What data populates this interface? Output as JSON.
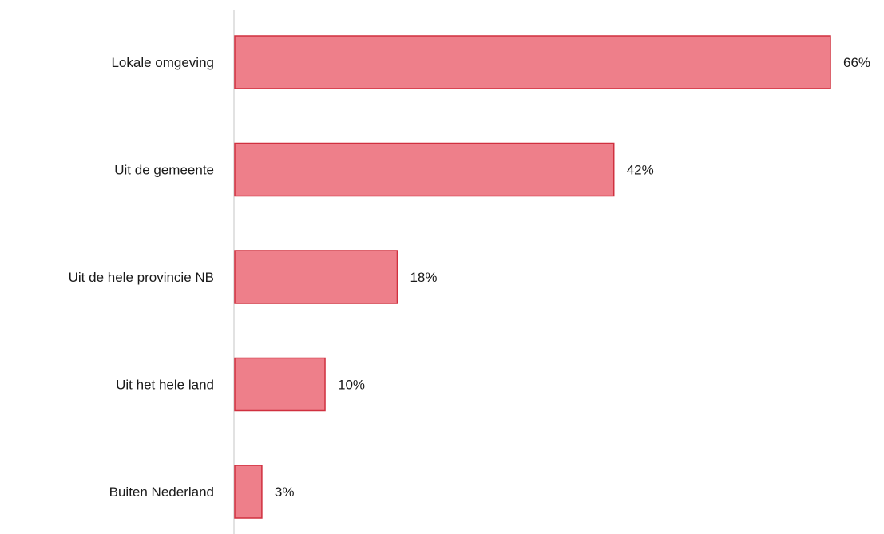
{
  "chart_data": {
    "type": "bar",
    "orientation": "horizontal",
    "categories": [
      "Lokale omgeving",
      "Uit de gemeente",
      "Uit de hele provincie NB",
      "Uit het hele land",
      "Buiten Nederland"
    ],
    "values": [
      66,
      42,
      18,
      10,
      3
    ],
    "value_labels": [
      "66%",
      "42%",
      "18%",
      "10%",
      "3%"
    ],
    "unit": "%",
    "title": "",
    "xlabel": "",
    "ylabel": "",
    "xlim": [
      0,
      66
    ],
    "grid": false,
    "legend": "none",
    "colors": {
      "bar_fill": "#EE7F8A",
      "bar_stroke": "#D0303F",
      "axis": "#D9D9D9",
      "text": "#1a1a1a"
    }
  }
}
